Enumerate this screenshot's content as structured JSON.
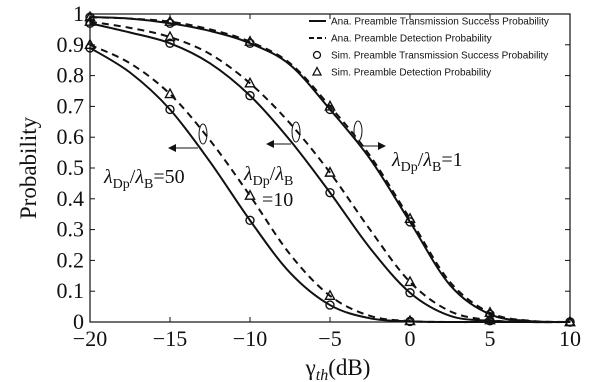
{
  "chart_data": {
    "type": "line",
    "xlabel": {
      "main": "γ",
      "sub": "th",
      "unit": "(dB)"
    },
    "ylabel": "Probability",
    "xlim": [
      -20,
      10
    ],
    "ylim": [
      0,
      1
    ],
    "x_ticks": [
      -20,
      -15,
      -10,
      -5,
      0,
      5,
      10
    ],
    "x_tick_labels": [
      "−20",
      "−15",
      "−10",
      "−5",
      "0",
      "5",
      "10"
    ],
    "y_ticks": [
      0,
      0.1,
      0.2,
      0.3,
      0.4,
      0.5,
      0.6,
      0.7,
      0.8,
      0.9,
      1
    ],
    "y_tick_labels": [
      "0",
      "0.1",
      "0.2",
      "0.3",
      "0.4",
      "0.5",
      "0.6",
      "0.7",
      "0.8",
      "0.9",
      "1"
    ],
    "grid": false,
    "legend_position": "top-right",
    "legend": [
      {
        "label": "Ana. Preamble Transmission Success Probability",
        "style": "solid"
      },
      {
        "label": "Ana. Preamble Detection Probability",
        "style": "dashed"
      },
      {
        "label": "Sim. Preamble Transmission Success Probability",
        "style": "circle"
      },
      {
        "label": "Sim. Preamble Detection Probability",
        "style": "triangle"
      }
    ],
    "x": [
      -20,
      -17.5,
      -15,
      -12.5,
      -10,
      -7.5,
      -5,
      -2.5,
      0,
      2.5,
      5,
      7.5,
      10
    ],
    "series": [
      {
        "kind": "analytical-success",
        "group": "50",
        "style": "solid",
        "values": [
          0.89,
          0.81,
          0.69,
          0.52,
          0.33,
          0.16,
          0.055,
          0.012,
          0.002,
          0,
          0,
          0,
          0
        ]
      },
      {
        "kind": "analytical-detection",
        "group": "50",
        "style": "dashed",
        "values": [
          0.9,
          0.84,
          0.74,
          0.59,
          0.41,
          0.22,
          0.085,
          0.02,
          0.003,
          0,
          0,
          0,
          0
        ]
      },
      {
        "kind": "analytical-success",
        "group": "10",
        "style": "solid",
        "values": [
          0.97,
          0.94,
          0.905,
          0.84,
          0.735,
          0.59,
          0.42,
          0.24,
          0.095,
          0.02,
          0.004,
          0,
          0
        ]
      },
      {
        "kind": "analytical-detection",
        "group": "10",
        "style": "dashed",
        "values": [
          0.975,
          0.955,
          0.925,
          0.87,
          0.775,
          0.645,
          0.485,
          0.3,
          0.13,
          0.035,
          0.006,
          0,
          0
        ]
      },
      {
        "kind": "analytical-success",
        "group": "1",
        "style": "solid",
        "values": [
          0.99,
          0.985,
          0.97,
          0.945,
          0.905,
          0.835,
          0.69,
          0.53,
          0.325,
          0.12,
          0.025,
          0.003,
          0
        ]
      },
      {
        "kind": "analytical-detection",
        "group": "1",
        "style": "dashed",
        "values": [
          0.99,
          0.985,
          0.975,
          0.95,
          0.91,
          0.84,
          0.7,
          0.54,
          0.335,
          0.13,
          0.03,
          0.004,
          0
        ]
      }
    ],
    "sim_points": [
      {
        "group": "50",
        "marker": "circle",
        "x": [
          -20,
          -15,
          -10,
          -5,
          0
        ],
        "y": [
          0.89,
          0.69,
          0.33,
          0.055,
          0.002
        ]
      },
      {
        "group": "50",
        "marker": "triangle",
        "x": [
          -20,
          -15,
          -10,
          -5,
          0
        ],
        "y": [
          0.9,
          0.74,
          0.41,
          0.085,
          0.003
        ]
      },
      {
        "group": "10",
        "marker": "circle",
        "x": [
          -20,
          -15,
          -10,
          -5,
          0,
          5,
          10
        ],
        "y": [
          0.97,
          0.905,
          0.735,
          0.42,
          0.095,
          0.004,
          0
        ]
      },
      {
        "group": "10",
        "marker": "triangle",
        "x": [
          -20,
          -15,
          -10,
          -5,
          0,
          5,
          10
        ],
        "y": [
          0.975,
          0.925,
          0.775,
          0.485,
          0.13,
          0.006,
          0
        ]
      },
      {
        "group": "1",
        "marker": "circle",
        "x": [
          -20,
          -15,
          -10,
          -5,
          0,
          5,
          10
        ],
        "y": [
          0.99,
          0.97,
          0.905,
          0.69,
          0.325,
          0.025,
          0
        ]
      },
      {
        "group": "1",
        "marker": "triangle",
        "x": [
          -20,
          -15,
          -10,
          -5,
          0,
          5,
          10
        ],
        "y": [
          0.99,
          0.975,
          0.91,
          0.7,
          0.335,
          0.03,
          0
        ]
      }
    ],
    "annotations": [
      {
        "id": "ratio-50",
        "lambda": "λ",
        "sub1": "Dp",
        "slash": "/",
        "sub2": "B",
        "value": "=50"
      },
      {
        "id": "ratio-10",
        "lambda": "λ",
        "sub1": "Dp",
        "slash": "/",
        "sub2": "B",
        "value": "=10"
      },
      {
        "id": "ratio-1",
        "lambda": "λ",
        "sub1": "Dp",
        "slash": "/",
        "sub2": "B",
        "value": "=1"
      }
    ]
  }
}
